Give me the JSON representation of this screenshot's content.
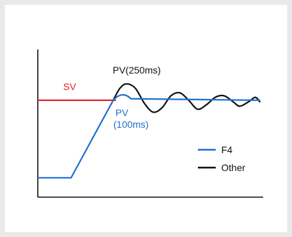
{
  "chart_data": {
    "type": "line",
    "title": "",
    "xlabel": "",
    "ylabel": "",
    "xlim": [
      0,
      10
    ],
    "ylim": [
      0,
      10
    ],
    "grid": false,
    "legend_position": "right",
    "annotations": {
      "sv": "SV",
      "pv_250": "PV(250ms)",
      "pv_100_line1": "PV",
      "pv_100_line2": "(100ms)"
    },
    "legend": [
      {
        "label": "F4",
        "color": "#1f6fd0"
      },
      {
        "label": "Other",
        "color": "#111111"
      }
    ],
    "series": [
      {
        "key": "sv",
        "label": "SV",
        "color": "#e11f2a",
        "points": [
          [
            0,
            6.5
          ],
          [
            3.5,
            6.5
          ]
        ]
      },
      {
        "key": "f4",
        "label": "F4",
        "color": "#1f6fd0",
        "points": [
          [
            0,
            1.3
          ],
          [
            1.5,
            1.3
          ],
          [
            3.4,
            6.5
          ],
          [
            3.8,
            6.9
          ],
          [
            4.2,
            6.6
          ],
          [
            10,
            6.5
          ]
        ]
      },
      {
        "key": "other",
        "label": "Other",
        "color": "#111111",
        "points": [
          [
            3.4,
            6.5
          ],
          [
            3.7,
            7.3
          ],
          [
            4.0,
            7.6
          ],
          [
            4.4,
            7.3
          ],
          [
            4.8,
            6.3
          ],
          [
            5.2,
            5.7
          ],
          [
            5.6,
            6.0
          ],
          [
            6.0,
            6.8
          ],
          [
            6.4,
            7.0
          ],
          [
            6.8,
            6.5
          ],
          [
            7.2,
            5.9
          ],
          [
            7.6,
            6.2
          ],
          [
            8.0,
            6.7
          ],
          [
            8.4,
            6.8
          ],
          [
            8.8,
            6.4
          ],
          [
            9.1,
            6.1
          ],
          [
            9.5,
            6.4
          ],
          [
            9.8,
            6.7
          ],
          [
            10.0,
            6.4
          ]
        ]
      }
    ]
  }
}
